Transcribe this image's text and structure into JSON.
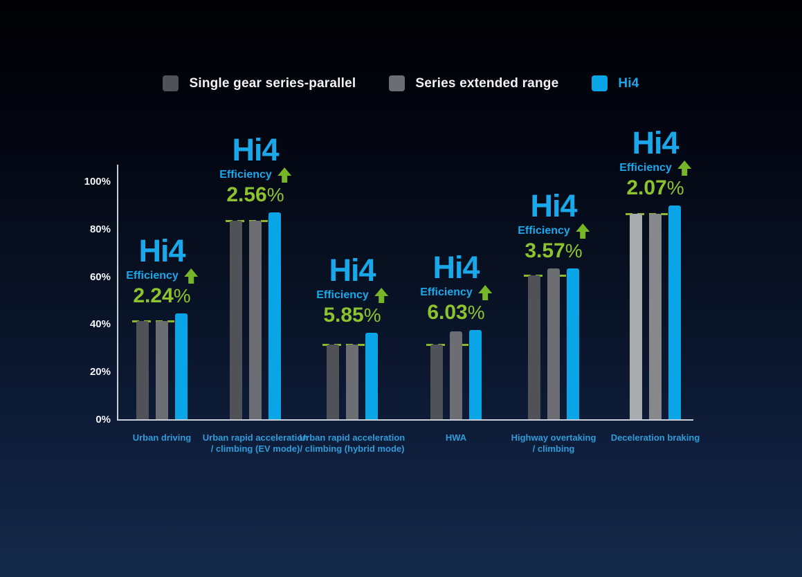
{
  "colors": {
    "hi4_blue": "#19a8ea",
    "gain_green": "#8cc32e",
    "arrow_green": "#77b629",
    "dash_green": "#8ab92c",
    "x_label_blue": "#2f9cd9",
    "y_label_white": "#f5f7fa",
    "axis_line": "#c9cfd9",
    "background_top": "#010103",
    "background_bottom": "#152a4a"
  },
  "chart_data": {
    "type": "bar",
    "title": "",
    "xlabel": "",
    "ylabel": "",
    "ylim": [
      0,
      100
    ],
    "grid": false,
    "legend_position": "top",
    "yticks": [
      "0%",
      "20%",
      "40%",
      "60%",
      "80%",
      "100%"
    ],
    "categories": [
      "Urban driving",
      "Urban rapid acceleration / climbing (EV mode)",
      "Urban rapid acceleration / climbing (hybrid mode)",
      "HWA",
      "Highway overtaking / climbing",
      "Deceleration braking"
    ],
    "series": [
      {
        "name": "Single gear series-parallel",
        "color": "#515258",
        "values": [
          42,
          84,
          32,
          32,
          61,
          87
        ]
      },
      {
        "name": "Series extended range",
        "color": "#6d6e74",
        "values": [
          42,
          84,
          32,
          37.5,
          64,
          87
        ]
      },
      {
        "name": "Hi4",
        "color": "#0aa5e6",
        "values": [
          45,
          87.5,
          37,
          38,
          64,
          90.5
        ]
      }
    ],
    "baseline_dash_values": [
      42,
      84,
      32,
      32,
      61,
      87
    ],
    "group_color_overrides": {
      "5": [
        "#aaabae",
        "#87888c",
        "#0aa5e6"
      ]
    },
    "annotations": [
      {
        "headline": "Hi4",
        "label": "Efficiency",
        "arrow": "up",
        "gain": "2.24",
        "suffix": "%"
      },
      {
        "headline": "Hi4",
        "label": "Efficiency",
        "arrow": "up",
        "gain": "2.56",
        "suffix": "%"
      },
      {
        "headline": "Hi4",
        "label": "Efficiency",
        "arrow": "up",
        "gain": "5.85",
        "suffix": "%"
      },
      {
        "headline": "Hi4",
        "label": "Efficiency",
        "arrow": "up",
        "gain": "6.03",
        "suffix": "%"
      },
      {
        "headline": "Hi4",
        "label": "Efficiency",
        "arrow": "up",
        "gain": "3.57",
        "suffix": "%"
      },
      {
        "headline": "Hi4",
        "label": "Efficiency",
        "arrow": "up",
        "gain": "2.07",
        "suffix": "%"
      }
    ]
  }
}
